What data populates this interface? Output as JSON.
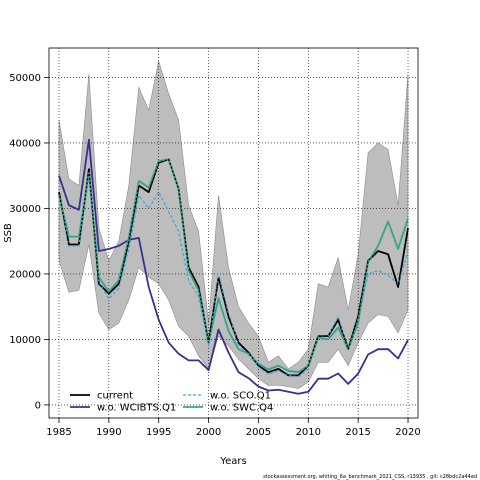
{
  "chart_data": {
    "type": "line",
    "xlabel": "Years",
    "ylabel": "SSB",
    "xlim": [
      1984,
      2021
    ],
    "ylim": [
      -2000,
      54500
    ],
    "x_ticks": [
      1985,
      1990,
      1995,
      2000,
      2005,
      2010,
      2015,
      2020
    ],
    "y_ticks": [
      0,
      10000,
      20000,
      30000,
      40000,
      50000
    ],
    "grid": true,
    "legend_position": "bottom-left",
    "x": [
      1985,
      1986,
      1987,
      1988,
      1989,
      1990,
      1991,
      1992,
      1993,
      1994,
      1995,
      1996,
      1997,
      1998,
      1999,
      2000,
      2001,
      2002,
      2003,
      2004,
      2005,
      2006,
      2007,
      2008,
      2009,
      2010,
      2011,
      2012,
      2013,
      2014,
      2015,
      2016,
      2017,
      2018,
      2019,
      2020
    ],
    "band": {
      "lower": [
        22000,
        17200,
        17500,
        24500,
        14000,
        11500,
        12500,
        16000,
        21000,
        19500,
        18500,
        16000,
        12000,
        10500,
        7500,
        5500,
        10500,
        9000,
        7000,
        5500,
        4000,
        3000,
        3000,
        2800,
        2500,
        3500,
        6500,
        6500,
        8500,
        6000,
        9500,
        12500,
        13800,
        13500,
        11000,
        14500
      ],
      "upper": [
        43500,
        34500,
        33500,
        50500,
        27000,
        22000,
        25000,
        33500,
        48500,
        45000,
        52500,
        47500,
        43500,
        30500,
        26500,
        12500,
        32000,
        21000,
        15000,
        12500,
        10500,
        6500,
        7500,
        5500,
        6500,
        8500,
        18500,
        18000,
        22500,
        14500,
        23000,
        38500,
        40000,
        39000,
        30500,
        50500
      ]
    },
    "series": [
      {
        "name": "current",
        "color": "#000000",
        "dash": "solid",
        "width": 1.8,
        "values": [
          32500,
          24500,
          24500,
          36000,
          18500,
          17000,
          18500,
          25000,
          33500,
          32500,
          37000,
          37500,
          33000,
          21000,
          18000,
          9500,
          19500,
          13500,
          9500,
          8000,
          6000,
          5000,
          5500,
          4500,
          4500,
          6000,
          10500,
          10500,
          13000,
          8500,
          13500,
          22000,
          23500,
          23000,
          18000,
          27000
        ]
      },
      {
        "name": "w.o. WCIBTS.Q1",
        "color": "#3a2f8f",
        "dash": "solid",
        "width": 1.8,
        "values": [
          35000,
          30500,
          29800,
          40500,
          23500,
          23800,
          24300,
          25200,
          25500,
          18000,
          13000,
          9500,
          7800,
          6800,
          6800,
          5300,
          11500,
          8000,
          5000,
          4100,
          2800,
          2200,
          2300,
          2000,
          1700,
          2000,
          4000,
          4000,
          4800,
          3200,
          4800,
          7700,
          8500,
          8500,
          7100,
          9900
        ]
      },
      {
        "name": "w.o. SCO.Q1",
        "color": "#3ea8de",
        "dash": "dashed",
        "width": 1.3,
        "values": [
          32000,
          24300,
          24300,
          35000,
          18800,
          16200,
          17800,
          23800,
          32000,
          30000,
          32500,
          29500,
          26500,
          19000,
          16500,
          9000,
          19800,
          14000,
          9200,
          7700,
          5800,
          4700,
          5200,
          4500,
          4300,
          5500,
          10500,
          10500,
          13500,
          8300,
          13200,
          20000,
          20500,
          19800,
          18500,
          23500
        ]
      },
      {
        "name": "w.o. SWC.Q4",
        "color": "#35a587",
        "dash": "solid",
        "width": 1.8,
        "values": [
          32000,
          25700,
          25700,
          35500,
          19500,
          17300,
          19000,
          25500,
          34200,
          33200,
          37200,
          37500,
          33000,
          20500,
          17500,
          9500,
          16300,
          11300,
          8500,
          7800,
          6300,
          5400,
          6000,
          5200,
          5000,
          6000,
          10300,
          10000,
          11800,
          8500,
          12600,
          21800,
          24300,
          28000,
          23800,
          28500
        ]
      }
    ],
    "legend": [
      {
        "label": "current",
        "series": 0
      },
      {
        "label": "w.o. WCIBTS.Q1",
        "series": 1
      },
      {
        "label": "w.o. SCO.Q1",
        "series": 2
      },
      {
        "label": "w.o. SWC.Q4",
        "series": 3
      }
    ]
  },
  "footer": "stockassessment.org, whiting_6a_benchmark_2021_CSS, r13935 , git: c28bdc2a44ad"
}
